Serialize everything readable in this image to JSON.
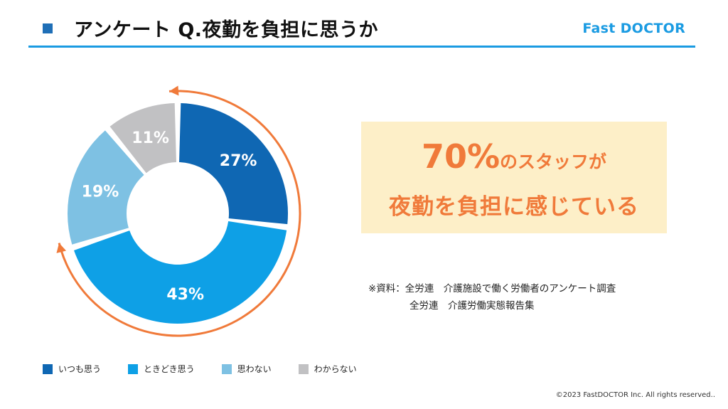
{
  "header": {
    "title": "アンケート Q.夜勤を負担に思うか",
    "brand": "Fast DOCTOR"
  },
  "colors": {
    "accent": "#1a9be2",
    "arrow": "#f07a3a",
    "callout_bg": "#fdefc8"
  },
  "chart_data": {
    "type": "pie",
    "categories": [
      "いつも思う",
      "ときどき思う",
      "思わない",
      "わからない"
    ],
    "values": [
      27,
      43,
      19,
      11
    ],
    "data_labels": [
      "27%",
      "43%",
      "19%",
      "11%"
    ],
    "colors": [
      "#0f67b3",
      "#0ea0e6",
      "#7ec1e3",
      "#c1c1c3"
    ],
    "legend_position": "bottom-left"
  },
  "callout": {
    "pct": "70%",
    "line1_suffix": "のスタッフが",
    "line2": "夜勤を負担に感じている"
  },
  "source": {
    "line1": "※資料：全労連　介護施設で働く労働者のアンケート調査",
    "line2": "全労連　介護労働実態報告集"
  },
  "footer": {
    "copyright": "©2023 FastDOCTOR Inc. All rights reserved.."
  }
}
